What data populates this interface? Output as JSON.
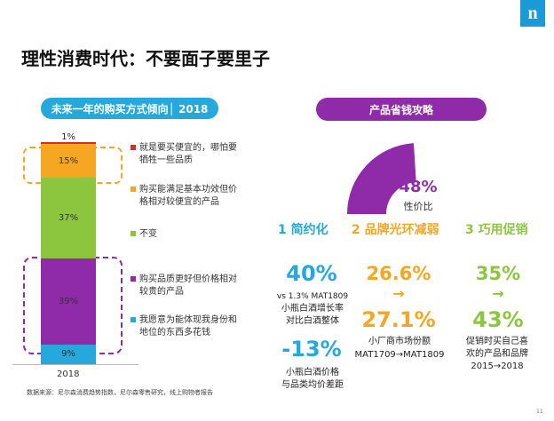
{
  "logo": {
    "text": "n"
  },
  "title": "理性消费时代：不要面子要里子",
  "left_panel": {
    "pill": "未来一年的购买方式倾向│ 2018",
    "legend": [
      {
        "text": "就是要买便宜的，哪怕要牺牲一些品质",
        "color": "#d0312d"
      },
      {
        "text": "购买能满足基本功效但价格相对较便宜的产品",
        "color": "#f5a623"
      },
      {
        "text": "不变",
        "color": "#8cc63f"
      },
      {
        "text": "购买品质更好但价格相对较贵的产品",
        "color": "#8f2aa8"
      },
      {
        "text": "我愿意为能体现我身份和地位的东西多花钱",
        "color": "#27a8dd"
      }
    ],
    "source": "数据来源：尼尔森消费趋势指数，尼尔森零售研究，线上购物者报告"
  },
  "chart_data": {
    "type": "bar",
    "stacked": true,
    "categories": [
      "2018"
    ],
    "series": [
      {
        "name": "就是要买便宜的，哪怕要牺牲一些品质",
        "values": [
          1
        ],
        "label": "1%",
        "color": "#d0312d"
      },
      {
        "name": "购买能满足基本功效但价格相对较便宜的产品",
        "values": [
          15
        ],
        "label": "15%",
        "color": "#f5a623"
      },
      {
        "name": "不变",
        "values": [
          37
        ],
        "label": "37%",
        "color": "#8cc63f"
      },
      {
        "name": "购买品质更好但价格相对较贵的产品",
        "values": [
          39
        ],
        "label": "39%",
        "color": "#8f2aa8"
      },
      {
        "name": "我愿意为能体现我身份和地位的东西多花钱",
        "values": [
          9
        ],
        "label": "9%",
        "color": "#27a8dd"
      }
    ],
    "legend": "right"
  },
  "right_panel": {
    "pill": "产品省钱攻略",
    "gauge": {
      "value": 0.48,
      "percent": "48%",
      "label": "性价比",
      "color": "#8f2aa8"
    },
    "strategies": [
      {
        "num": "1",
        "label": "简约化",
        "color": "#27a8dd"
      },
      {
        "num": "2",
        "label": "品牌光环减弱",
        "color": "#f5a623"
      },
      {
        "num": "3",
        "label": "巧用促销",
        "color": "#8cc63f"
      }
    ],
    "col1": {
      "stat1": "40%",
      "desc1a": "vs 1.3% MAT1809",
      "desc1b": "小瓶白酒增长率",
      "desc1c": "对比白酒整体",
      "stat2": "-13%",
      "desc2a": "小瓶白酒价格",
      "desc2b": "与品类均价差距"
    },
    "col2": {
      "stat_from": "26.6%",
      "arrow": "→",
      "stat_to": "27.1%",
      "desc_a": "小厂商市场份额",
      "desc_b": "MAT1709→MAT1809"
    },
    "col3": {
      "stat_from": "35%",
      "arrow": "→",
      "stat_to": "43%",
      "desc_a": "促销时买自己喜",
      "desc_b": "欢的产品和品牌",
      "desc_c": "2015→2018"
    }
  },
  "page_number": "11"
}
